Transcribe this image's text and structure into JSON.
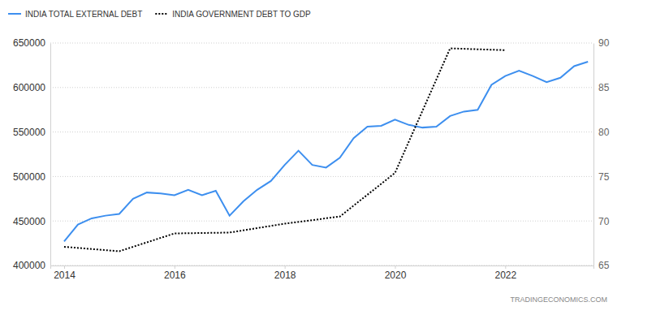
{
  "chart_data": {
    "type": "line",
    "annotations": [
      "TRADINGECONOMICS.COM"
    ],
    "grid": true,
    "legend": "top-left",
    "xlim": [
      2013.75,
      2023.6
    ],
    "xticks": [
      2014,
      2016,
      2018,
      2020,
      2022
    ],
    "ylim": [
      400000,
      650000
    ],
    "yticks": [
      400000,
      450000,
      500000,
      550000,
      600000,
      650000
    ],
    "y2lim": [
      65,
      90
    ],
    "y2ticks": [
      65,
      70,
      75,
      80,
      85,
      90
    ],
    "series": [
      {
        "name": "INDIA TOTAL EXTERNAL DEBT",
        "color": "#3d8fef",
        "line_style": "solid",
        "x": [
          2014,
          2014.25,
          2014.5,
          2014.75,
          2015,
          2015.25,
          2015.5,
          2015.75,
          2016,
          2016.25,
          2016.5,
          2016.75,
          2017,
          2017.25,
          2017.5,
          2017.75,
          2018,
          2018.25,
          2018.5,
          2018.75,
          2019,
          2019.25,
          2019.5,
          2019.75,
          2020,
          2020.25,
          2020.5,
          2020.75,
          2021,
          2021.25,
          2021.5,
          2021.75,
          2022,
          2022.25,
          2022.5,
          2022.75,
          2023,
          2023.25,
          2023.5
        ],
        "values": [
          427000,
          446000,
          453000,
          456000,
          458000,
          475000,
          482000,
          481000,
          479000,
          485000,
          479000,
          484000,
          456000,
          472000,
          485000,
          495000,
          513000,
          529000,
          513000,
          510000,
          521000,
          543000,
          556000,
          557000,
          564000,
          558000,
          555000,
          556000,
          568000,
          573000,
          575000,
          603000,
          613000,
          619000,
          613000,
          606000,
          611000,
          624000,
          629000
        ]
      },
      {
        "name": "INDIA GOVERNMENT DEBT TO GDP",
        "color": "#000000",
        "line_style": "dotted",
        "axis": "y2",
        "x": [
          2014,
          2015,
          2016,
          2017,
          2018,
          2019,
          2020,
          2021,
          2022
        ],
        "values": [
          67.1,
          66.6,
          68.6,
          68.7,
          69.7,
          70.5,
          75.4,
          89.4,
          89.2
        ]
      }
    ]
  }
}
